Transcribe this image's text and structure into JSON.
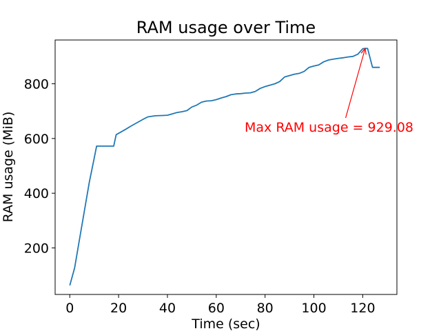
{
  "chart_data": {
    "type": "line",
    "title": "RAM usage over Time",
    "xlabel": "Time (sec)",
    "ylabel": "RAM usage (MiB)",
    "xlim": [
      -6,
      134
    ],
    "ylim": [
      30,
      960
    ],
    "xticks": [
      0,
      20,
      40,
      60,
      80,
      100,
      120
    ],
    "yticks": [
      200,
      400,
      600,
      800
    ],
    "grid": false,
    "line_color": "#1f77b4",
    "series": [
      {
        "x": [
          0,
          2,
          4,
          6,
          8,
          10,
          11,
          13,
          15,
          18,
          19,
          21,
          23,
          25,
          28,
          30,
          32,
          35,
          38,
          40,
          42,
          44,
          46,
          48,
          50,
          52,
          54,
          56,
          58,
          60,
          62,
          64,
          66,
          68,
          70,
          72,
          74,
          76,
          78,
          80,
          82,
          84,
          86,
          88,
          90,
          92,
          94,
          96,
          98,
          100,
          102,
          104,
          106,
          108,
          110,
          112,
          114,
          116,
          118,
          120,
          121,
          122,
          124,
          127
        ],
        "y": [
          63,
          127,
          232,
          336,
          440,
          528,
          572,
          572,
          572,
          572,
          614,
          624,
          634,
          645,
          660,
          670,
          679,
          683,
          684,
          685,
          690,
          695,
          698,
          702,
          715,
          722,
          733,
          737,
          738,
          742,
          748,
          753,
          760,
          763,
          764,
          766,
          767,
          772,
          783,
          790,
          795,
          800,
          808,
          825,
          830,
          835,
          838,
          845,
          860,
          865,
          869,
          880,
          887,
          890,
          893,
          895,
          898,
          900,
          908,
          928,
          929.08,
          929,
          860,
          860
        ]
      }
    ],
    "annotations": [
      {
        "text": "Max RAM usage = 929.08",
        "color": "#ff0000",
        "point": [
          121,
          929.08
        ],
        "text_anchor": [
          113,
          675
        ]
      }
    ]
  }
}
